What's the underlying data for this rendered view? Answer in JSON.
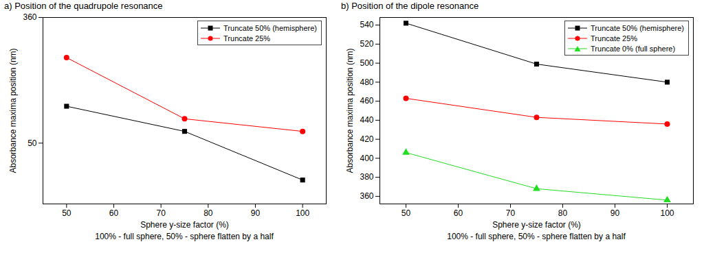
{
  "chart_data": [
    {
      "type": "line",
      "title": "a) Position of the quadrupole resonance",
      "x_label": "Sphere y-size factor (%)",
      "caption": "100% - full sphere, 50% - sphere flatten by a half",
      "y_label": "Absorbance maxima position (nm)",
      "x": [
        50,
        75,
        100
      ],
      "xlim": [
        45,
        105
      ],
      "xticks": [
        50,
        60,
        70,
        80,
        90,
        100
      ],
      "ylim": [
        -100,
        360
      ],
      "yticks": [
        50,
        360
      ],
      "legend": "top-right",
      "series": [
        {
          "name": "Truncate 50% (hemisphere)",
          "color": "#000000",
          "marker": "square",
          "values": [
            141,
            79,
            -41
          ]
        },
        {
          "name": "Truncate 25%",
          "color": "#ff0000",
          "marker": "circle",
          "values": [
            261,
            110,
            79
          ]
        }
      ]
    },
    {
      "type": "line",
      "title": "b) Position of the dipole resonance",
      "x_label": "Sphere y-size factor (%)",
      "caption": "100% - full sphere, 50% - sphere flatten by a half",
      "y_label": "Absorbance maxima position (nm)",
      "x": [
        50,
        75,
        100
      ],
      "xlim": [
        45,
        105
      ],
      "xticks": [
        50,
        60,
        70,
        80,
        90,
        100
      ],
      "ylim": [
        352,
        548
      ],
      "yticks": [
        360,
        380,
        400,
        420,
        440,
        460,
        480,
        500,
        520,
        540
      ],
      "legend": "top-right",
      "series": [
        {
          "name": "Truncate 50% (hemisphere)",
          "color": "#000000",
          "marker": "square",
          "values": [
            542,
            499,
            480
          ]
        },
        {
          "name": "Truncate 25%",
          "color": "#ff0000",
          "marker": "circle",
          "values": [
            463,
            443,
            436
          ]
        },
        {
          "name": "Truncate 0% (full sphere)",
          "color": "#22dd22",
          "marker": "triangle",
          "values": [
            406,
            368,
            356
          ]
        }
      ]
    }
  ]
}
